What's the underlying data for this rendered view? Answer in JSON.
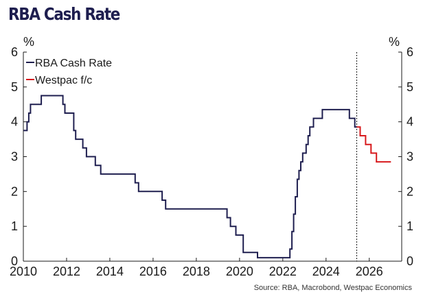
{
  "chart_data": {
    "type": "line",
    "title": "RBA Cash Rate",
    "source": "Source: RBA, Macrobond, Westpac Economics",
    "y_unit_left": "%",
    "y_unit_right": "%",
    "xlim": [
      2010,
      2027.5
    ],
    "ylim": [
      0,
      6
    ],
    "x_ticks": [
      2010,
      2012,
      2014,
      2016,
      2018,
      2020,
      2022,
      2024,
      2026
    ],
    "y_ticks": [
      0,
      1,
      2,
      3,
      4,
      5,
      6
    ],
    "forecast_start": 2025.42,
    "legend_position": "top-left",
    "grid": false,
    "colors": {
      "actual": "#1e1e4f",
      "forecast": "#d7191c",
      "title": "#1e1e4f"
    },
    "series": [
      {
        "name": "RBA Cash Rate",
        "x": [
          2010.0,
          2010.17,
          2010.25,
          2010.33,
          2010.42,
          2010.83,
          2011.83,
          2011.92,
          2012.33,
          2012.42,
          2012.75,
          2012.92,
          2013.33,
          2013.58,
          2015.17,
          2015.33,
          2016.42,
          2016.58,
          2019.42,
          2019.58,
          2019.83,
          2020.17,
          2020.83,
          2022.33,
          2022.42,
          2022.5,
          2022.58,
          2022.67,
          2022.75,
          2022.83,
          2022.92,
          2023.08,
          2023.17,
          2023.25,
          2023.42,
          2023.83,
          2025.08,
          2025.33
        ],
        "y": [
          3.75,
          4.0,
          4.25,
          4.5,
          4.5,
          4.75,
          4.5,
          4.25,
          3.75,
          3.5,
          3.25,
          3.0,
          2.75,
          2.5,
          2.25,
          2.0,
          1.75,
          1.5,
          1.25,
          1.0,
          0.75,
          0.25,
          0.1,
          0.35,
          0.85,
          1.35,
          1.85,
          2.35,
          2.6,
          2.85,
          3.1,
          3.35,
          3.6,
          3.85,
          4.1,
          4.35,
          4.1,
          3.85
        ]
      },
      {
        "name": "Westpac f/c",
        "x": [
          2025.42,
          2025.58,
          2025.83,
          2026.08,
          2026.33,
          2027.0
        ],
        "y": [
          3.85,
          3.6,
          3.35,
          3.1,
          2.85,
          2.85
        ]
      }
    ]
  }
}
